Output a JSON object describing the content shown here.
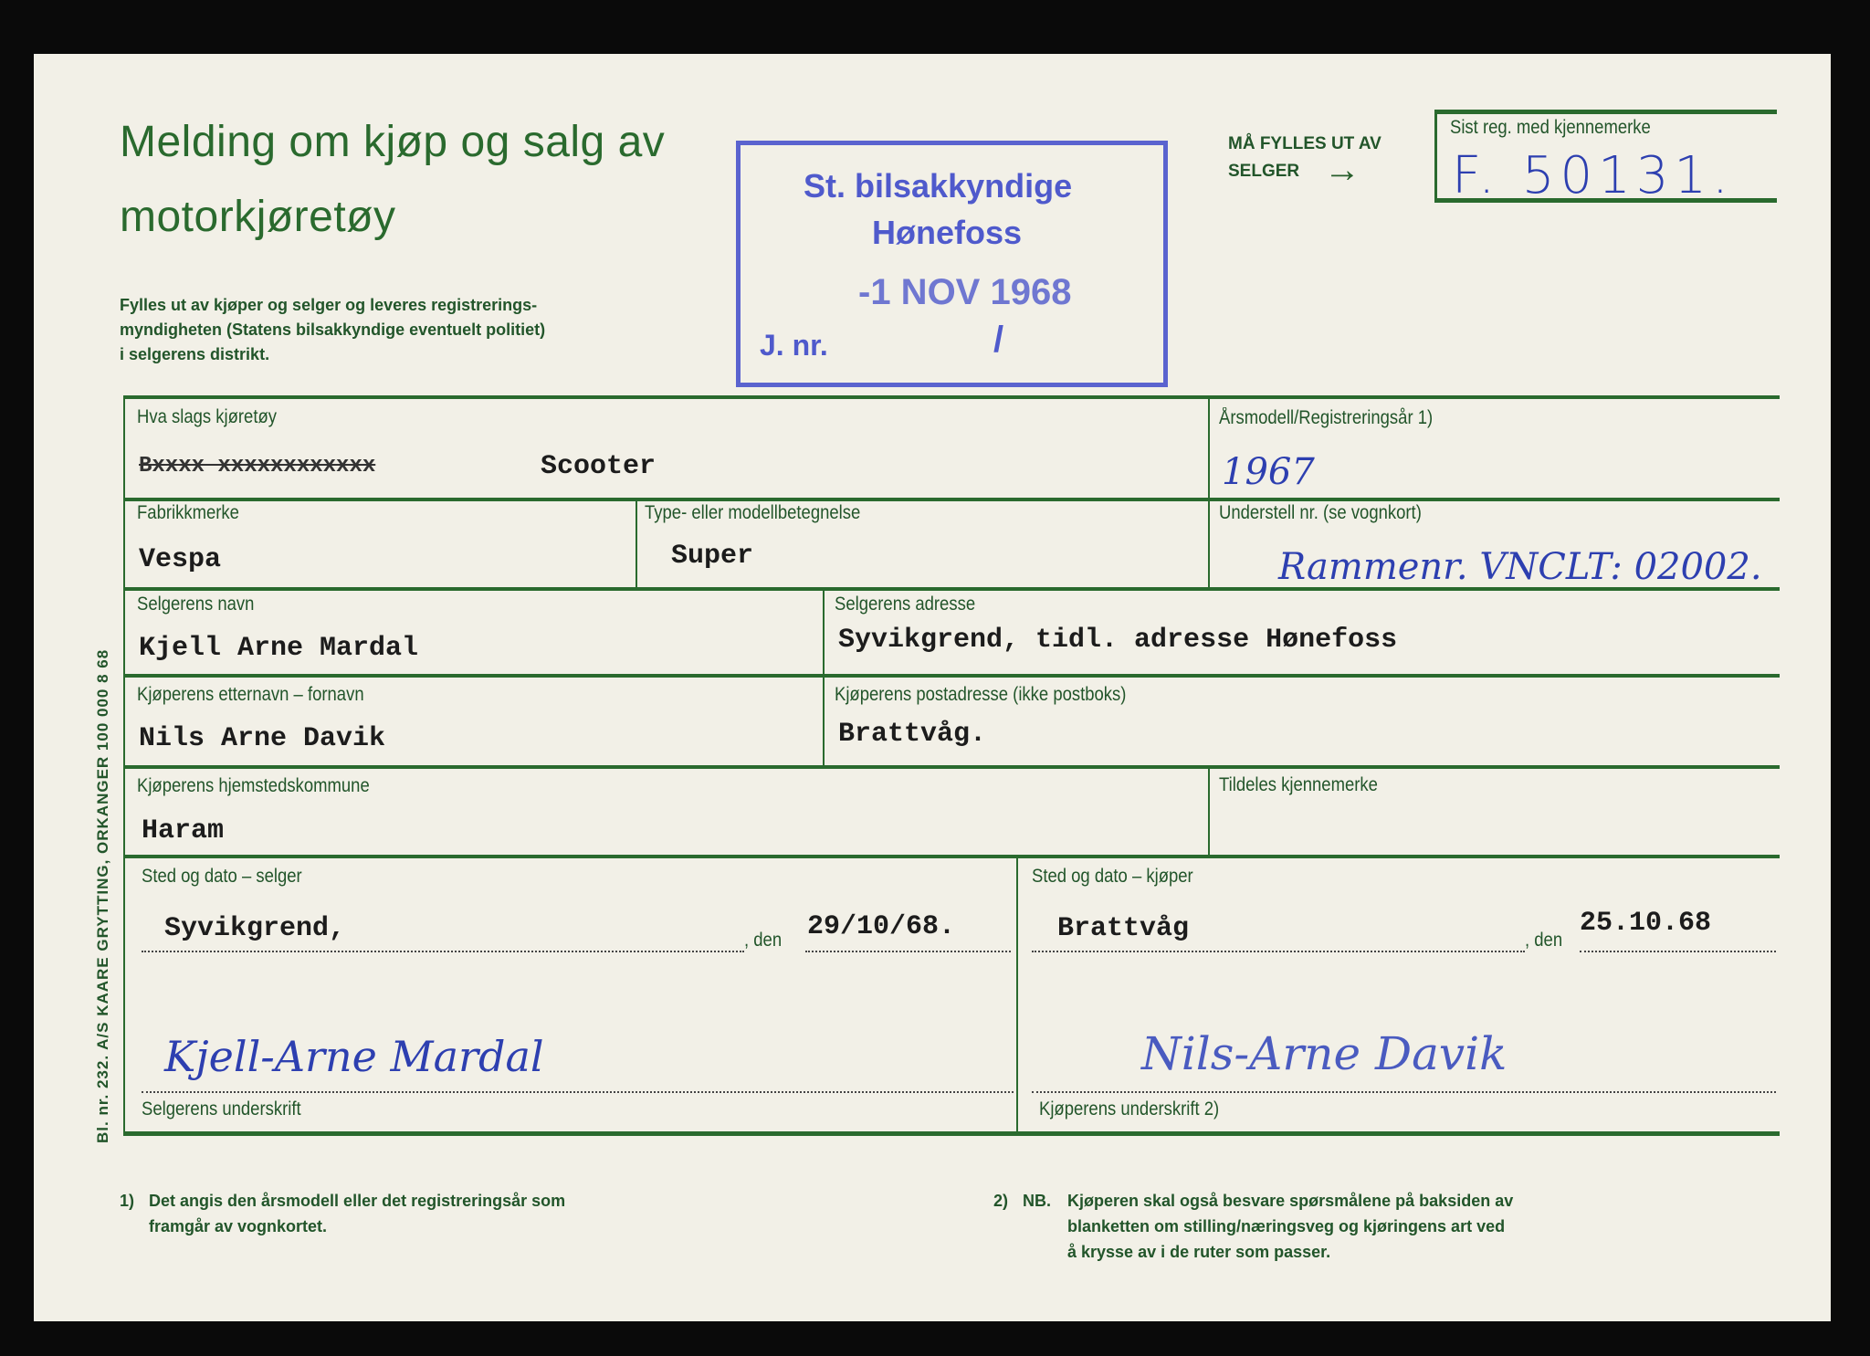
{
  "header": {
    "title_line1": "Melding om kjøp og salg av",
    "title_line2": "motorkjøretøy",
    "instructions": [
      "Fylles ut av kjøper og selger og leveres registrerings-",
      "myndigheten (Statens bilsakkyndige eventuelt politiet)",
      "i selgerens distrikt."
    ]
  },
  "stamp": {
    "line1": "St. bilsakkyndige",
    "line2": "Hønefoss",
    "date": "-1 NOV 1968",
    "jnr_label": "J. nr.",
    "jnr_value": "/"
  },
  "seller_note": {
    "line1": "MÅ FYLLES UT AV",
    "line2": "SELGER",
    "arrow": "→"
  },
  "last_reg": {
    "label": "Sist reg. med kjennemerke",
    "value": "F. 50131."
  },
  "form": {
    "vehicle_type": {
      "label": "Hva slags kjøretøy",
      "struck": "Bxxxx xxxxxxxxxxxx",
      "value": "Scooter"
    },
    "model_year": {
      "label": "Årsmodell/Registreringsår 1)",
      "value": "1967"
    },
    "make": {
      "label": "Fabrikkmerke",
      "value": "Vespa"
    },
    "model": {
      "label": "Type- eller modellbetegnelse",
      "value": "Super"
    },
    "chassis": {
      "label": "Understell nr. (se vognkort)",
      "value": "Rammenr. VNCLT: 02002."
    },
    "seller_name": {
      "label": "Selgerens navn",
      "value": "Kjell Arne Mardal"
    },
    "seller_address": {
      "label": "Selgerens adresse",
      "value": "Syvikgrend, tidl. adresse Hønefoss"
    },
    "buyer_name": {
      "label": "Kjøperens etternavn – fornavn",
      "value": "Nils Arne Davik"
    },
    "buyer_address": {
      "label": "Kjøperens postadresse (ikke postboks)",
      "value": "Brattvåg."
    },
    "buyer_municipality": {
      "label": "Kjøperens hjemstedskommune",
      "value": "Haram"
    },
    "assigned_plate": {
      "label": "Tildeles kjennemerke",
      "value": ""
    },
    "seller_place_date": {
      "label": "Sted og dato – selger",
      "place": "Syvikgrend,",
      "den": ", den",
      "date": "29/10/68."
    },
    "buyer_place_date": {
      "label": "Sted og dato – kjøper",
      "place": "Brattvåg",
      "den": ", den",
      "date": "25.10.68"
    },
    "seller_signature": {
      "label": "Selgerens underskrift",
      "value": "Kjell-Arne Mardal"
    },
    "buyer_signature": {
      "label": "Kjøperens underskrift 2)",
      "value": "Nils-Arne Davik"
    }
  },
  "footnotes": {
    "note1_num": "1)",
    "note1": [
      "Det angis den årsmodell eller det registreringsår som",
      "framgår av vognkortet."
    ],
    "note2_num": "2)",
    "note2_prefix": "NB.",
    "note2": [
      "Kjøperen skal også besvare spørsmålene på baksiden av",
      "blanketten om stilling/næringsveg og kjøringens art ved",
      "å krysse av i de ruter som passer."
    ]
  },
  "side_print": "Bl. nr. 232. A/S KAARE GRYTTING, ORKANGER 100 000 8 68",
  "colors": {
    "form_green": "#2a6a2e",
    "stamp_blue": "#4f5acc",
    "ink_blue": "#2d3fb0",
    "paper": "#f2f0e7"
  }
}
